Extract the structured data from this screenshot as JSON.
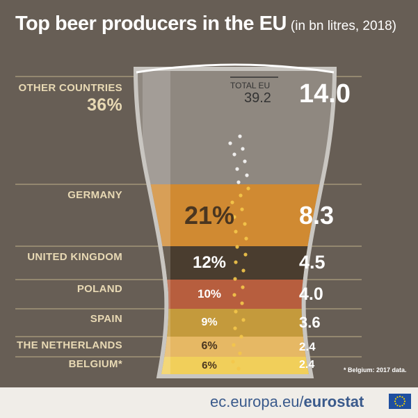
{
  "title": "Top beer producers in the EU",
  "subtitle": "(in bn litres, 2018)",
  "total": {
    "label": "TOTAL EU",
    "value": "39.2"
  },
  "chart_data": {
    "type": "bar",
    "categories": [
      "OTHER COUNTRIES",
      "GERMANY",
      "UNITED KINGDOM",
      "POLAND",
      "SPAIN",
      "THE NETHERLANDS",
      "BELGIUM*"
    ],
    "values": [
      14.0,
      8.3,
      4.5,
      4.0,
      3.6,
      2.4,
      2.4
    ],
    "value_labels": [
      "14.0",
      "8.3",
      "4.5",
      "4.0",
      "3.6",
      "2.4",
      "2.4"
    ],
    "shares": [
      "36%",
      "21%",
      "12%",
      "10%",
      "9%",
      "6%",
      "6%"
    ],
    "colors": [
      "#d2d0cc",
      "#d08a32",
      "#4a3d2f",
      "#b75e3e",
      "#c49a3c",
      "#e6b864",
      "#f1cf5a"
    ],
    "share_colors": [
      "#e8d9b4",
      "#4a3620",
      "#ffffff",
      "#ffffff",
      "#ffffff",
      "#4a3620",
      "#4a3620"
    ]
  },
  "footnote": "* Belgium: 2017 data.",
  "footer": {
    "url": "ec.europa.eu/",
    "brand": "eurostat"
  },
  "colors": {
    "background": "#675e55",
    "label": "#e8d9b4",
    "value": "#ffffff",
    "footer_text": "#3a5a8c",
    "eu_blue": "#1f4fa0",
    "eu_star": "#f5d400"
  }
}
